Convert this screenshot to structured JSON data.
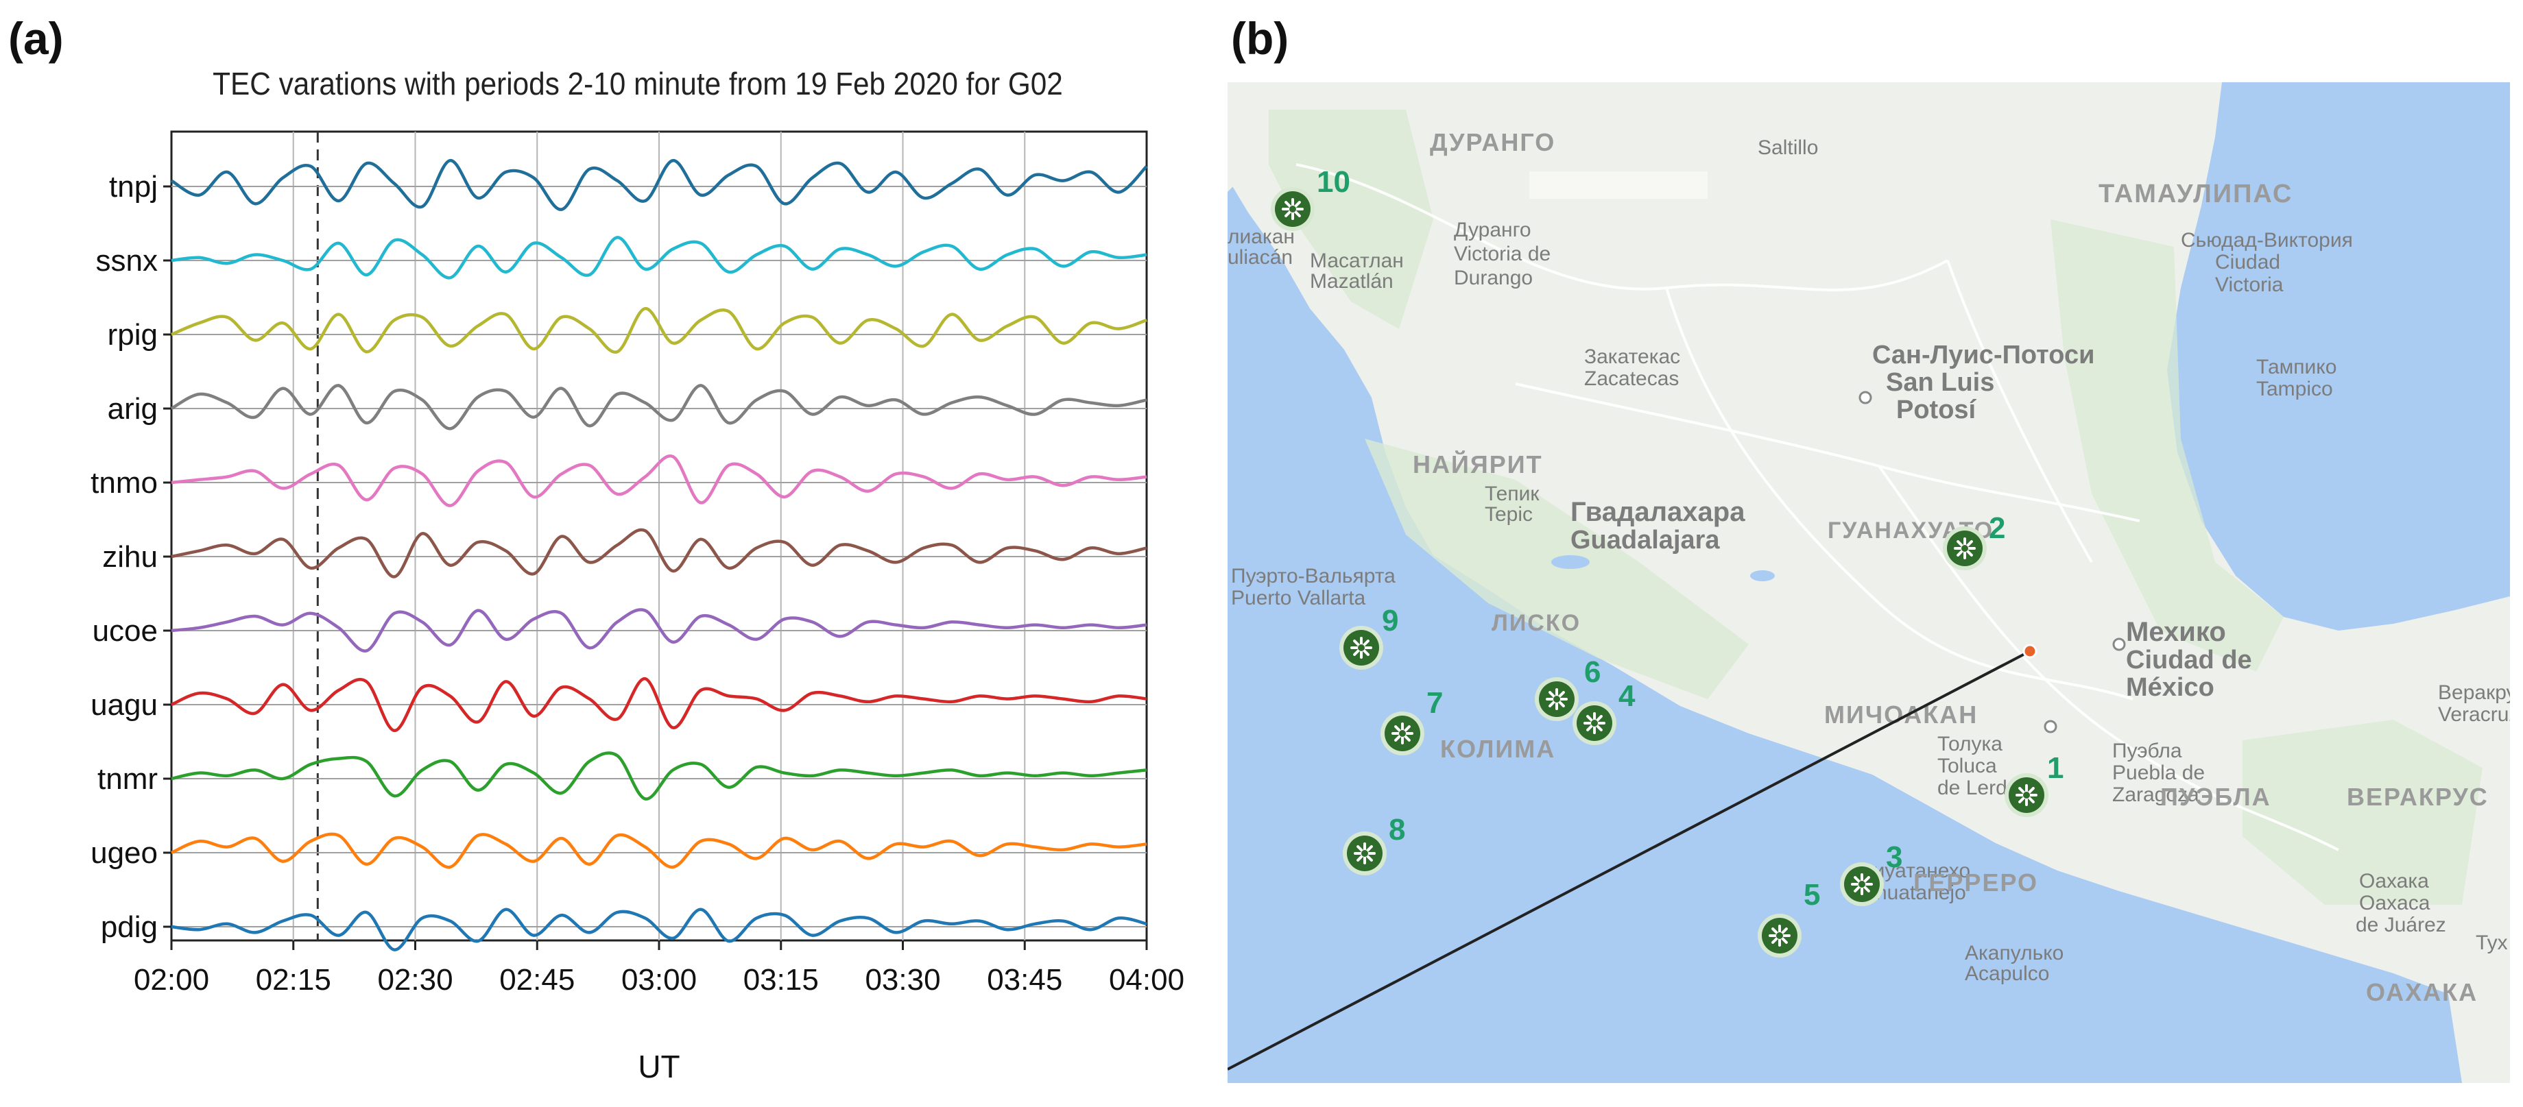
{
  "panels": {
    "a_label": "(a)",
    "b_label": "(b)"
  },
  "chart_data": {
    "type": "line",
    "title": "TEC varations with periods 2-10 minute from 19 Feb 2020 for  G02",
    "xlabel": "UT",
    "ylabel": "",
    "x_ticks": [
      "02:00",
      "02:15",
      "02:30",
      "02:45",
      "03:00",
      "03:15",
      "03:30",
      "03:45",
      "04:00"
    ],
    "x_range_minutes": [
      0,
      120
    ],
    "event_marker_minute": 18,
    "grid": true,
    "series": [
      {
        "name": "tnpj",
        "color": "#1f6f9a",
        "values": [
          0.2,
          -0.3,
          0.5,
          -0.6,
          0.3,
          0.7,
          -0.5,
          0.8,
          0.1,
          -0.7,
          0.9,
          -0.4,
          0.5,
          0.3,
          -0.8,
          0.6,
          0.2,
          -0.5,
          0.9,
          -0.3,
          0.4,
          0.7,
          -0.6,
          0.3,
          0.8,
          -0.2,
          0.5,
          -0.4,
          0.1,
          0.6,
          -0.3,
          0.4,
          0.2,
          0.5,
          -0.2,
          0.7
        ]
      },
      {
        "name": "ssnx",
        "color": "#22b8cf",
        "values": [
          0.0,
          0.1,
          -0.1,
          0.2,
          0.0,
          -0.3,
          0.6,
          -0.5,
          0.7,
          0.2,
          -0.6,
          0.5,
          -0.4,
          0.6,
          0.1,
          -0.5,
          0.8,
          -0.3,
          0.4,
          0.6,
          -0.4,
          0.2,
          0.5,
          -0.3,
          0.4,
          0.2,
          -0.2,
          0.3,
          0.5,
          -0.3,
          0.2,
          0.4,
          -0.2,
          0.3,
          0.1,
          0.2
        ]
      },
      {
        "name": "rpig",
        "color": "#b5b730",
        "values": [
          0.0,
          0.4,
          0.6,
          -0.2,
          0.4,
          -0.5,
          0.7,
          -0.6,
          0.5,
          0.6,
          -0.4,
          0.3,
          0.7,
          -0.5,
          0.6,
          0.2,
          -0.6,
          0.9,
          -0.3,
          0.5,
          0.8,
          -0.5,
          0.4,
          0.6,
          -0.3,
          0.5,
          0.2,
          -0.4,
          0.7,
          -0.2,
          0.3,
          0.6,
          -0.3,
          0.4,
          0.2,
          0.5
        ]
      },
      {
        "name": "arig",
        "color": "#7f7f7f",
        "values": [
          0.0,
          0.5,
          0.2,
          -0.3,
          0.7,
          -0.2,
          0.8,
          -0.5,
          0.6,
          0.3,
          -0.7,
          0.4,
          0.6,
          -0.3,
          0.7,
          -0.6,
          0.5,
          0.2,
          -0.4,
          0.8,
          -0.5,
          0.3,
          0.6,
          -0.2,
          0.4,
          0.1,
          0.3,
          -0.2,
          0.2,
          0.4,
          0.1,
          -0.2,
          0.3,
          0.2,
          0.1,
          0.3
        ]
      },
      {
        "name": "tnmo",
        "color": "#e377c2",
        "values": [
          0.0,
          0.1,
          0.2,
          0.4,
          -0.2,
          0.3,
          0.6,
          -0.6,
          0.5,
          0.3,
          -0.8,
          0.4,
          0.7,
          -0.5,
          0.3,
          0.6,
          -0.4,
          0.2,
          0.9,
          -0.7,
          0.6,
          0.3,
          -0.5,
          0.4,
          0.2,
          -0.3,
          0.3,
          0.2,
          -0.2,
          0.3,
          0.1,
          0.2,
          -0.1,
          0.2,
          0.1,
          0.2
        ]
      },
      {
        "name": "zihu",
        "color": "#8c564b",
        "values": [
          0.0,
          0.2,
          0.4,
          0.1,
          0.6,
          -0.4,
          0.3,
          0.6,
          -0.7,
          0.8,
          -0.3,
          0.5,
          0.2,
          -0.6,
          0.7,
          -0.2,
          0.4,
          0.9,
          -0.5,
          0.6,
          -0.4,
          0.3,
          0.5,
          -0.3,
          0.4,
          0.2,
          -0.2,
          0.3,
          0.4,
          -0.2,
          0.3,
          0.2,
          -0.1,
          0.3,
          0.1,
          0.3
        ]
      },
      {
        "name": "ucoe",
        "color": "#9467bd",
        "values": [
          0.0,
          0.1,
          0.3,
          0.5,
          0.2,
          0.6,
          0.1,
          -0.7,
          0.6,
          0.3,
          -0.5,
          0.7,
          -0.3,
          0.4,
          0.6,
          -0.6,
          0.3,
          0.7,
          -0.4,
          0.5,
          0.2,
          -0.3,
          0.4,
          0.3,
          -0.2,
          0.3,
          0.2,
          0.1,
          0.3,
          0.2,
          0.1,
          0.2,
          0.1,
          0.2,
          0.1,
          0.2
        ]
      },
      {
        "name": "uagu",
        "color": "#d62728",
        "values": [
          0.0,
          0.4,
          0.2,
          -0.3,
          0.7,
          -0.2,
          0.5,
          0.8,
          -0.9,
          0.6,
          0.3,
          -0.6,
          0.8,
          -0.4,
          0.6,
          0.2,
          -0.5,
          0.9,
          -0.8,
          0.5,
          0.3,
          0.2,
          -0.2,
          0.4,
          0.3,
          0.1,
          0.3,
          0.2,
          0.1,
          0.3,
          0.2,
          0.3,
          0.2,
          0.1,
          0.3,
          0.2
        ]
      },
      {
        "name": "tnmr",
        "color": "#2ca02c",
        "values": [
          0.0,
          0.2,
          0.1,
          0.3,
          0.0,
          0.5,
          0.7,
          0.6,
          -0.6,
          0.3,
          0.6,
          -0.4,
          0.5,
          0.2,
          -0.5,
          0.6,
          0.8,
          -0.7,
          0.3,
          0.5,
          -0.3,
          0.4,
          0.2,
          0.1,
          0.3,
          0.2,
          0.1,
          0.2,
          0.3,
          0.1,
          0.2,
          0.1,
          0.2,
          0.1,
          0.2,
          0.3
        ]
      },
      {
        "name": "ugeo",
        "color": "#ff7f0e",
        "values": [
          0.0,
          0.4,
          0.2,
          0.5,
          -0.3,
          0.4,
          0.6,
          -0.4,
          0.5,
          0.2,
          -0.5,
          0.6,
          0.3,
          -0.3,
          0.5,
          -0.4,
          0.6,
          0.2,
          -0.5,
          0.4,
          0.3,
          -0.2,
          0.5,
          0.1,
          0.4,
          -0.2,
          0.3,
          0.2,
          0.4,
          -0.1,
          0.3,
          0.2,
          0.1,
          0.3,
          0.2,
          0.3
        ]
      },
      {
        "name": "pdig",
        "color": "#1f77b4",
        "values": [
          0.0,
          -0.1,
          0.1,
          -0.2,
          0.2,
          0.4,
          -0.3,
          0.5,
          -0.8,
          0.3,
          0.2,
          -0.5,
          0.6,
          -0.3,
          0.4,
          -0.2,
          0.5,
          0.3,
          -0.4,
          0.6,
          -0.5,
          0.3,
          0.4,
          -0.3,
          0.2,
          0.3,
          -0.2,
          0.2,
          0.1,
          0.2,
          -0.1,
          0.1,
          0.2,
          -0.1,
          0.3,
          0.1
        ]
      }
    ]
  },
  "map": {
    "places": [
      {
        "text": "ДУРАНГО",
        "kind": "region"
      },
      {
        "text": "Saltillo",
        "kind": "city"
      },
      {
        "text": "ТАМАУЛИПАС",
        "kind": "region"
      },
      {
        "text": "лиакан",
        "kind": "city"
      },
      {
        "text": "uliacán",
        "kind": "city"
      },
      {
        "text": "Дуранго",
        "kind": "city"
      },
      {
        "text": "Victoria de",
        "kind": "city"
      },
      {
        "text": "Durango",
        "kind": "city"
      },
      {
        "text": "Масатлан",
        "kind": "city"
      },
      {
        "text": "Mazatlán",
        "kind": "city"
      },
      {
        "text": "Сьюдад-Виктория",
        "kind": "city"
      },
      {
        "text": "Ciudad",
        "kind": "city"
      },
      {
        "text": "Victoria",
        "kind": "city"
      },
      {
        "text": "Закатекас",
        "kind": "city"
      },
      {
        "text": "Zacatecas",
        "kind": "city"
      },
      {
        "text": "Сан-Луис-Потоси",
        "kind": "bigcity"
      },
      {
        "text": "San Luis",
        "kind": "bigcity"
      },
      {
        "text": "Potosí",
        "kind": "bigcity"
      },
      {
        "text": "Тампико",
        "kind": "city"
      },
      {
        "text": "Tampico",
        "kind": "city"
      },
      {
        "text": "НАЙЯРИТ",
        "kind": "region"
      },
      {
        "text": "Тепик",
        "kind": "city"
      },
      {
        "text": "Tepic",
        "kind": "city"
      },
      {
        "text": "Гвадалахара",
        "kind": "bigcity"
      },
      {
        "text": "Guadalajara",
        "kind": "bigcity"
      },
      {
        "text": "ГУАНАХУАТО",
        "kind": "region"
      },
      {
        "text": "Пуэрто-Вальярта",
        "kind": "city"
      },
      {
        "text": "Puerto Vallarta",
        "kind": "city"
      },
      {
        "text": "Мехико",
        "kind": "bigcity"
      },
      {
        "text": "Ciudad de",
        "kind": "bigcity"
      },
      {
        "text": "México",
        "kind": "bigcity"
      },
      {
        "text": "ЛИСКО",
        "kind": "region"
      },
      {
        "text": "Веракрус",
        "kind": "city"
      },
      {
        "text": "Veracruz",
        "kind": "city"
      },
      {
        "text": "МИЧОАКАН",
        "kind": "region"
      },
      {
        "text": "КОЛИМА",
        "kind": "region"
      },
      {
        "text": "Толука",
        "kind": "city"
      },
      {
        "text": "Toluca",
        "kind": "city"
      },
      {
        "text": "de Lerdo",
        "kind": "city"
      },
      {
        "text": "Пуэбла",
        "kind": "city"
      },
      {
        "text": "Puebla de",
        "kind": "city"
      },
      {
        "text": "Zaragoza",
        "kind": "city"
      },
      {
        "text": "ПУЭБЛА",
        "kind": "region"
      },
      {
        "text": "ВЕРАКРУС",
        "kind": "region"
      },
      {
        "text": "Сиуатанехо",
        "kind": "city"
      },
      {
        "text": "Zihuatanejo",
        "kind": "city"
      },
      {
        "text": "ГЕРРЕРО",
        "kind": "region"
      },
      {
        "text": "Акапулько",
        "kind": "city"
      },
      {
        "text": "Acapulco",
        "kind": "city"
      },
      {
        "text": "Оахака",
        "kind": "city"
      },
      {
        "text": "Oaxaca",
        "kind": "city"
      },
      {
        "text": "de Juárez",
        "kind": "city"
      },
      {
        "text": "ОАХАКА",
        "kind": "region"
      },
      {
        "text": "Тух",
        "kind": "city"
      }
    ],
    "markers": [
      {
        "num": "10"
      },
      {
        "num": "2"
      },
      {
        "num": "9"
      },
      {
        "num": "6"
      },
      {
        "num": "4"
      },
      {
        "num": "7"
      },
      {
        "num": "1"
      },
      {
        "num": "8"
      },
      {
        "num": "3"
      },
      {
        "num": "5"
      }
    ],
    "colors": {
      "ocean": "#aacbf2",
      "land": "#eef0ec",
      "green": "#d9ead3",
      "marker": "#2f6b2a",
      "marker_ring": "#d6e9d0",
      "epicenter": "#e8632a"
    }
  }
}
